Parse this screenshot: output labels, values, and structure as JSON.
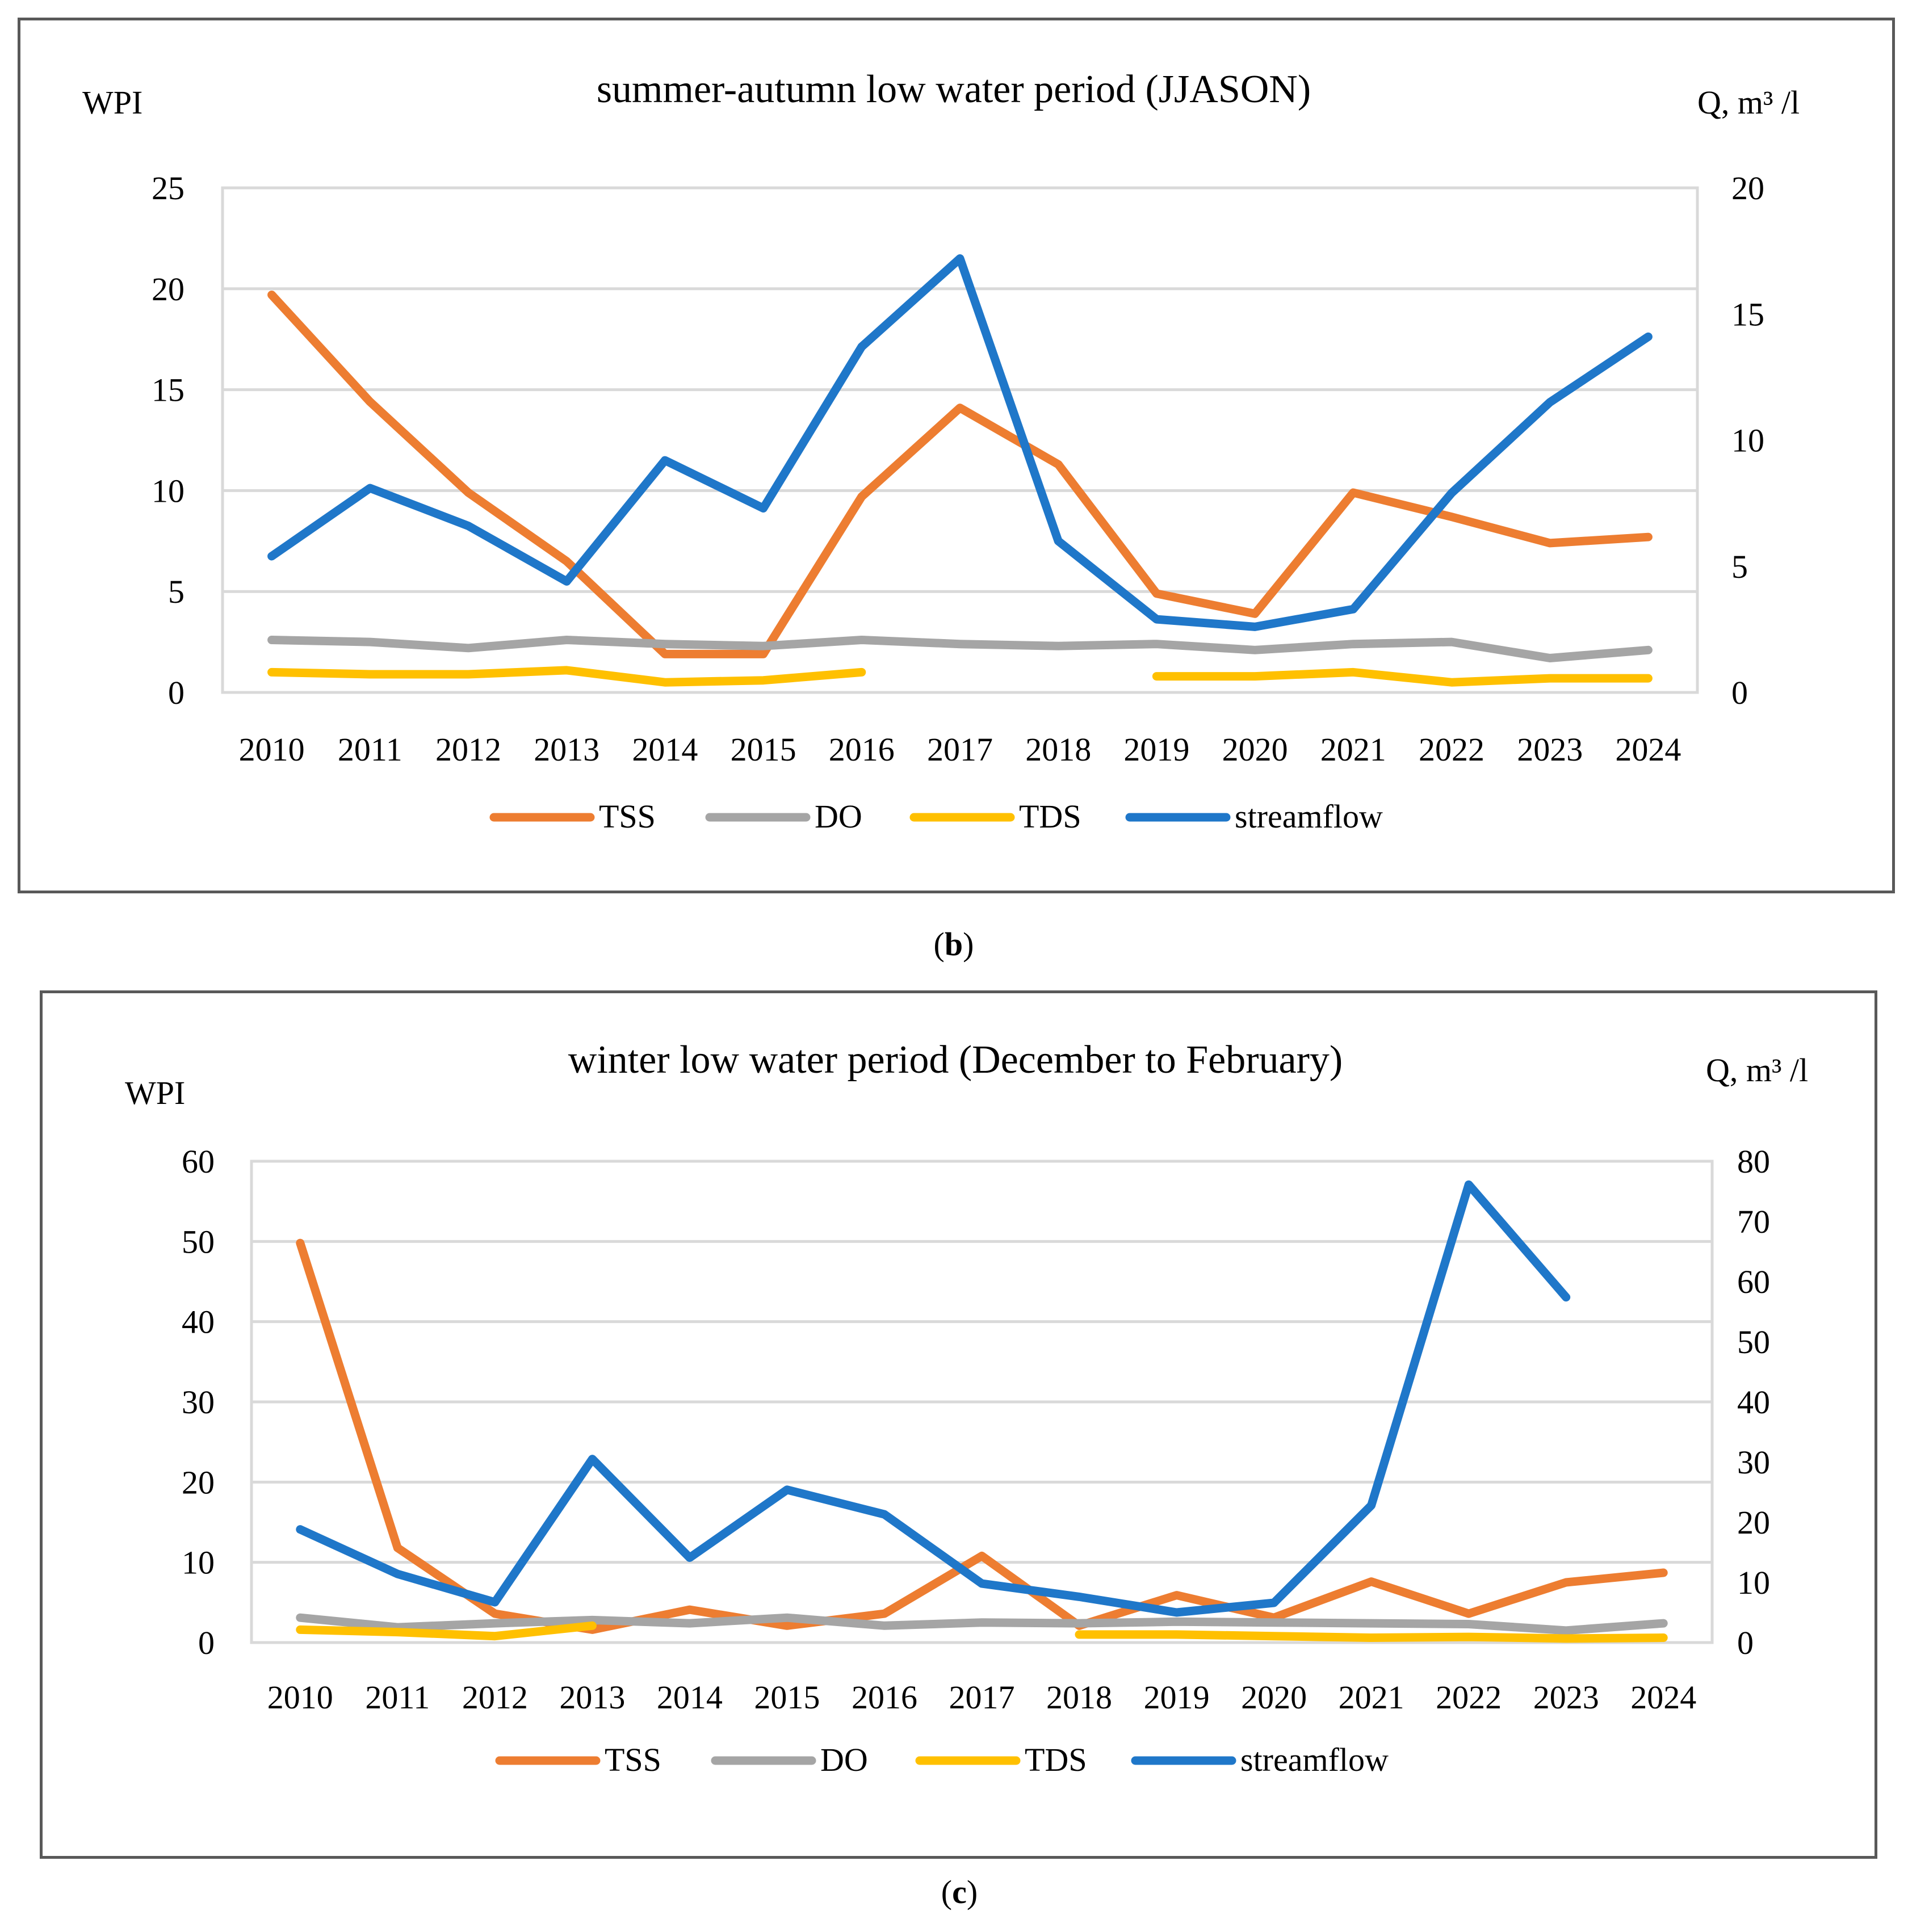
{
  "colors": {
    "TSS": "#ED7D31",
    "DO": "#A5A5A5",
    "TDS": "#FFC000",
    "streamflow": "#1F77C9",
    "grid": "#D9D9D9",
    "frame": "#595959",
    "text": "#000000"
  },
  "captions": [
    {
      "open": "(",
      "letter": "b",
      "close": ")"
    },
    {
      "open": "(",
      "letter": "c",
      "close": ")"
    }
  ],
  "chart_data": [
    {
      "type": "line",
      "title": "summer-autumn low water period (JJASON)",
      "ylabel": "WPI",
      "y2label": "Q, m³ /l",
      "categories": [
        "2010",
        "2011",
        "2012",
        "2013",
        "2014",
        "2015",
        "2016",
        "2017",
        "2018",
        "2019",
        "2020",
        "2021",
        "2022",
        "2023",
        "2024"
      ],
      "ylim": [
        0,
        25
      ],
      "yticks": [
        0,
        5,
        10,
        15,
        20,
        25
      ],
      "y2lim": [
        0,
        20
      ],
      "y2ticks": [
        0,
        5,
        10,
        15,
        20
      ],
      "grid": true,
      "legend_position": "bottom",
      "series": [
        {
          "name": "TSS",
          "axis": "left",
          "values": [
            19.7,
            14.4,
            9.9,
            6.5,
            1.9,
            1.9,
            9.7,
            14.1,
            11.3,
            4.9,
            3.9,
            9.9,
            8.7,
            7.4,
            7.7
          ]
        },
        {
          "name": "DO",
          "axis": "left",
          "values": [
            2.6,
            2.5,
            2.2,
            2.6,
            2.4,
            2.3,
            2.6,
            2.4,
            2.3,
            2.4,
            2.1,
            2.4,
            2.5,
            1.7,
            2.1
          ]
        },
        {
          "name": "TDS",
          "axis": "left",
          "values": [
            1.0,
            0.9,
            0.9,
            1.1,
            0.5,
            0.6,
            1.0,
            null,
            null,
            0.8,
            0.8,
            1.0,
            0.5,
            0.7,
            0.7
          ]
        },
        {
          "name": "streamflow",
          "axis": "right",
          "values": [
            5.4,
            8.1,
            6.6,
            4.4,
            9.2,
            7.3,
            13.7,
            17.2,
            6.0,
            2.9,
            2.6,
            3.3,
            7.9,
            11.5,
            14.1
          ]
        }
      ]
    },
    {
      "type": "line",
      "title": "winter low water period (December to February)",
      "ylabel": "WPI",
      "y2label": "Q, m³ /l",
      "categories": [
        "2010",
        "2011",
        "2012",
        "2013",
        "2014",
        "2015",
        "2016",
        "2017",
        "2018",
        "2019",
        "2020",
        "2021",
        "2022",
        "2023",
        "2024"
      ],
      "ylim": [
        0,
        60
      ],
      "yticks": [
        0,
        10,
        20,
        30,
        40,
        50,
        60
      ],
      "y2lim": [
        0,
        80
      ],
      "y2ticks": [
        0,
        10,
        20,
        30,
        40,
        50,
        60,
        70,
        80
      ],
      "grid": true,
      "legend_position": "bottom",
      "series": [
        {
          "name": "TSS",
          "axis": "left",
          "values": [
            49.8,
            11.8,
            3.6,
            1.6,
            4.1,
            2.1,
            3.6,
            10.8,
            2.1,
            5.9,
            3.1,
            7.6,
            3.6,
            7.5,
            8.7
          ]
        },
        {
          "name": "DO",
          "axis": "left",
          "values": [
            3.1,
            1.9,
            2.4,
            2.8,
            2.4,
            3.1,
            2.1,
            2.5,
            2.4,
            2.6,
            2.5,
            2.4,
            2.3,
            1.5,
            2.4
          ]
        },
        {
          "name": "TDS",
          "axis": "left",
          "values": [
            1.6,
            1.3,
            0.8,
            2.1,
            null,
            null,
            null,
            null,
            1.0,
            1.0,
            0.8,
            0.6,
            0.7,
            0.5,
            0.6
          ]
        },
        {
          "name": "streamflow",
          "axis": "right",
          "values": [
            18.8,
            11.4,
            6.7,
            30.5,
            14.1,
            25.4,
            21.3,
            9.8,
            7.6,
            5.0,
            6.6,
            22.8,
            76.1,
            57.4,
            null
          ]
        }
      ]
    }
  ]
}
